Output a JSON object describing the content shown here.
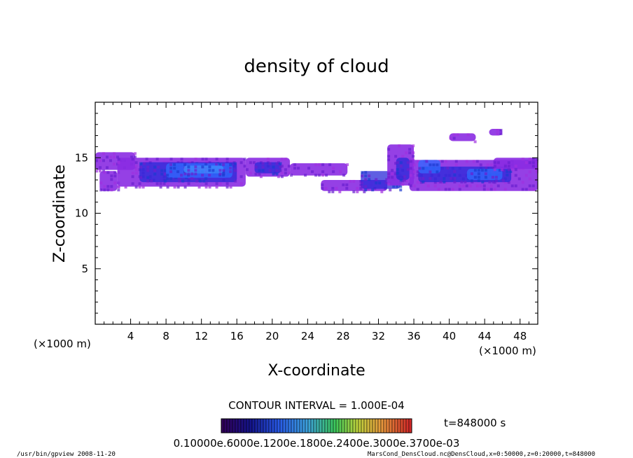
{
  "chart_data": {
    "type": "heatmap",
    "title": "density of cloud",
    "xlabel": "X-coordinate",
    "ylabel": "Z-coordinate",
    "x_unit": "(×1000 m)",
    "z_unit": "(×1000 m)",
    "xlim": [
      0,
      50
    ],
    "zlim": [
      0,
      20
    ],
    "x_ticks": [
      4,
      8,
      12,
      16,
      20,
      24,
      28,
      32,
      36,
      40,
      44,
      48
    ],
    "z_ticks": [
      5,
      10,
      15
    ],
    "contour_interval": "CONTOUR INTERVAL = 1.000E-04",
    "time_label": "t=848000 s",
    "colorbar_labels": [
      "0.1000",
      "0.6000",
      "0.1200e-03",
      "0.1800e-03",
      "0.2400e-03",
      "0.3000e-03",
      "0.3700e-03"
    ],
    "colorbar_text": "0.10000e.6000e.1200e.1800e.2400e.3000e.3700e-03",
    "colors": {
      "low": "#8a2be2",
      "mid": "#2a2ad8",
      "high": "#2f6bff",
      "peak": "#3f8fff"
    },
    "cloud_regions": [
      {
        "x0": 0.0,
        "x1": 4.5,
        "z0": 13.9,
        "z1": 15.5,
        "level": 1
      },
      {
        "x0": 0.5,
        "x1": 2.5,
        "z0": 12.0,
        "z1": 13.8,
        "level": 1
      },
      {
        "x0": 2.5,
        "x1": 17.0,
        "z0": 12.4,
        "z1": 15.0,
        "level": 1
      },
      {
        "x0": 5.0,
        "x1": 16.0,
        "z0": 12.8,
        "z1": 14.6,
        "level": 2
      },
      {
        "x0": 8.0,
        "x1": 15.5,
        "z0": 13.2,
        "z1": 14.5,
        "level": 3
      },
      {
        "x0": 10.0,
        "x1": 14.5,
        "z0": 13.6,
        "z1": 14.3,
        "level": 4
      },
      {
        "x0": 17.0,
        "x1": 22.0,
        "z0": 13.3,
        "z1": 15.0,
        "level": 1
      },
      {
        "x0": 18.0,
        "x1": 21.0,
        "z0": 13.6,
        "z1": 14.6,
        "level": 2
      },
      {
        "x0": 22.0,
        "x1": 28.5,
        "z0": 13.4,
        "z1": 14.5,
        "level": 1
      },
      {
        "x0": 25.5,
        "x1": 33.0,
        "z0": 12.0,
        "z1": 13.0,
        "level": 1
      },
      {
        "x0": 30.0,
        "x1": 34.5,
        "z0": 12.2,
        "z1": 13.8,
        "level": 2
      },
      {
        "x0": 33.0,
        "x1": 36.0,
        "z0": 12.5,
        "z1": 16.2,
        "level": 1
      },
      {
        "x0": 34.0,
        "x1": 35.5,
        "z0": 13.0,
        "z1": 15.0,
        "level": 2
      },
      {
        "x0": 35.5,
        "x1": 50.0,
        "z0": 12.0,
        "z1": 14.8,
        "level": 1
      },
      {
        "x0": 36.5,
        "x1": 47.0,
        "z0": 12.8,
        "z1": 14.2,
        "level": 2
      },
      {
        "x0": 36.5,
        "x1": 39.0,
        "z0": 13.6,
        "z1": 14.8,
        "level": 3
      },
      {
        "x0": 42.0,
        "x1": 46.0,
        "z0": 13.0,
        "z1": 14.0,
        "level": 3
      },
      {
        "x0": 45.0,
        "x1": 50.0,
        "z0": 14.0,
        "z1": 15.0,
        "level": 1
      },
      {
        "x0": 40.0,
        "x1": 43.0,
        "z0": 16.5,
        "z1": 17.2,
        "level": 1
      },
      {
        "x0": 44.5,
        "x1": 46.0,
        "z0": 17.0,
        "z1": 17.6,
        "level": 1
      }
    ]
  },
  "footer": {
    "left": "/usr/bin/gpview  2008-11-20",
    "right": "MarsCond_DensCloud.nc@DensCloud,x=0:50000,z=0:20000,t=848000"
  }
}
